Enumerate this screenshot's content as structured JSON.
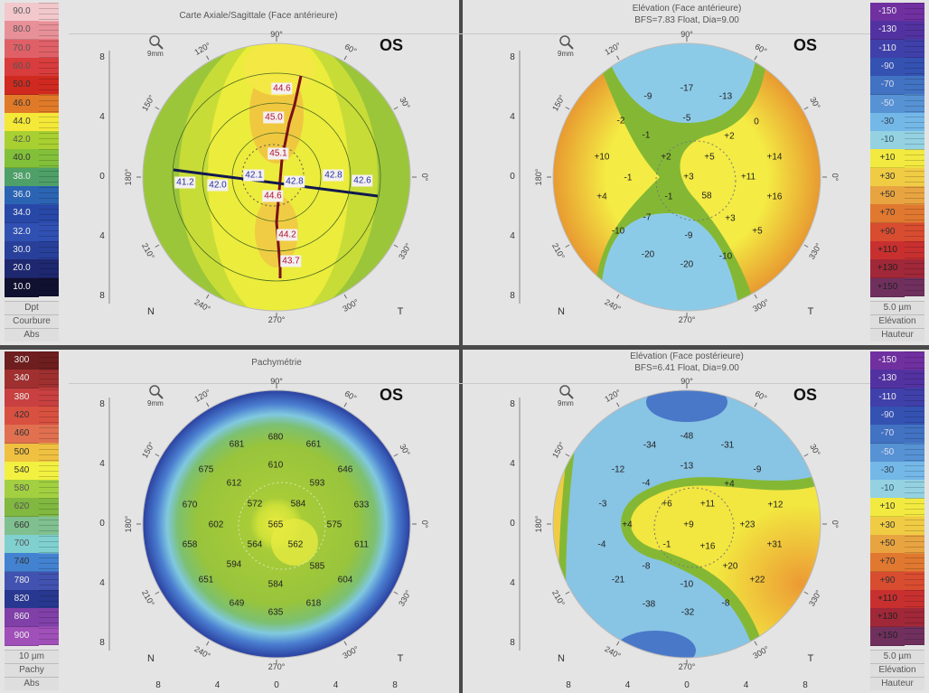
{
  "panels": [
    {
      "id": "axial",
      "title": "Carte Axiale/Sagittale (Face antérieure)",
      "subtitle": "",
      "eye": "OS",
      "zoom_label": "9mm",
      "nasal": "N",
      "temporal": "T",
      "y_axis": [
        "8",
        "4",
        "0",
        "4",
        "8"
      ],
      "x_axis": [],
      "angles": [
        "90°",
        "120°",
        "150°",
        "180°",
        "210°",
        "240°",
        "270°",
        "300°",
        "330°",
        "0°",
        "30°",
        "60°"
      ],
      "scale": {
        "values": [
          "90.0",
          "80.0",
          "70.0",
          "60.0",
          "50.0",
          "46.0",
          "44.0",
          "42.0",
          "40.0",
          "38.0",
          "36.0",
          "34.0",
          "32.0",
          "30.0",
          "20.0",
          "10.0"
        ],
        "colors": [
          "#f2c8cc",
          "#e89098",
          "#e06068",
          "#d83c3c",
          "#d02a20",
          "#e07a28",
          "#f4e838",
          "#a8d030",
          "#82c03a",
          "#4ea068",
          "#2c64b4",
          "#2848a8",
          "#3050b2",
          "#28409a",
          "#1e2870",
          "#101030"
        ],
        "text_colors": [
          "#555",
          "#555",
          "#555",
          "#555",
          "#333",
          "#333",
          "#333",
          "#555",
          "#333",
          "#eee",
          "#eee",
          "#eee",
          "#eee",
          "#eee",
          "#eee",
          "#fff"
        ],
        "footer": [
          "Dpt",
          "Courbure",
          "Abs"
        ]
      },
      "values": [
        {
          "v": "44.6",
          "kind": "steep"
        },
        {
          "v": "45.0",
          "kind": "steep"
        },
        {
          "v": "45.1",
          "kind": "steep"
        },
        {
          "v": "44.6",
          "kind": "steep"
        },
        {
          "v": "44.2",
          "kind": "steep"
        },
        {
          "v": "43.7",
          "kind": "steep"
        },
        {
          "v": "41.2",
          "kind": "flat"
        },
        {
          "v": "42.0",
          "kind": "flat"
        },
        {
          "v": "42.1",
          "kind": "flat"
        },
        {
          "v": "42.8",
          "kind": "flat"
        },
        {
          "v": "42.8",
          "kind": "flat"
        },
        {
          "v": "42.6",
          "kind": "flat"
        }
      ]
    },
    {
      "id": "elev-ant",
      "title": "Elévation (Face antérieure)",
      "subtitle": "BFS=7.83 Float, Dia=9.00",
      "eye": "OS",
      "zoom_label": "9mm",
      "nasal": "N",
      "temporal": "T",
      "y_axis": [
        "8",
        "4",
        "0",
        "4",
        "8"
      ],
      "x_axis": [],
      "angles": [
        "90°",
        "120°",
        "150°",
        "180°",
        "210°",
        "240°",
        "270°",
        "300°",
        "330°",
        "0°",
        "30°",
        "60°"
      ],
      "scale": {
        "values": [
          "-150",
          "-130",
          "-110",
          "-90",
          "-70",
          "-50",
          "-30",
          "-10",
          "+10",
          "+30",
          "+50",
          "+70",
          "+90",
          "+110",
          "+130",
          "+150"
        ],
        "colors": [
          "#7030a0",
          "#5232a0",
          "#4040aa",
          "#3452b2",
          "#4272c2",
          "#5692d4",
          "#74b8e8",
          "#94d2e2",
          "#f2ea40",
          "#f0cc44",
          "#e8a440",
          "#e07830",
          "#d84c30",
          "#c83030",
          "#a02838",
          "#70305e"
        ],
        "text_colors": [
          "#eee",
          "#eee",
          "#eee",
          "#dde",
          "#dde",
          "#dde",
          "#345",
          "#356",
          "#333",
          "#333",
          "#333",
          "#333",
          "#333",
          "#222",
          "#222",
          "#222"
        ],
        "footer": [
          "5.0 µm",
          "Elévation",
          "Hauteur"
        ]
      },
      "values": [
        "-9",
        "-17",
        "-13",
        "-5",
        "0",
        "-2",
        "-1",
        "+2",
        "+10",
        "+2",
        "+5",
        "+14",
        "+3",
        "+11",
        "-1",
        "+4",
        "-1",
        "58",
        "+16",
        "-7",
        "+3",
        "-10",
        "-9",
        "+5",
        "-20",
        "-20",
        "-10"
      ]
    },
    {
      "id": "pachy",
      "title": "Pachymétrie",
      "subtitle": "",
      "eye": "OS",
      "zoom_label": "9mm",
      "nasal": "N",
      "temporal": "T",
      "y_axis": [
        "8",
        "4",
        "0",
        "4",
        "8"
      ],
      "x_axis": [
        "8",
        "4",
        "0",
        "4",
        "8"
      ],
      "angles": [
        "90°",
        "120°",
        "150°",
        "180°",
        "210°",
        "240°",
        "270°",
        "300°",
        "330°",
        "0°",
        "30°",
        "60°"
      ],
      "scale": {
        "values": [
          "300",
          "340",
          "380",
          "420",
          "460",
          "500",
          "540",
          "580",
          "620",
          "660",
          "700",
          "740",
          "780",
          "820",
          "860",
          "900"
        ],
        "colors": [
          "#6e1e1e",
          "#a03030",
          "#c84040",
          "#d85040",
          "#e07050",
          "#f0c040",
          "#f2f040",
          "#a2d040",
          "#80b840",
          "#80c090",
          "#80d0d0",
          "#4282d0",
          "#4252b0",
          "#283890",
          "#8040a8",
          "#a050b8"
        ],
        "text_colors": [
          "#eee",
          "#eee",
          "#eee",
          "#333",
          "#333",
          "#333",
          "#333",
          "#555",
          "#555",
          "#333",
          "#555",
          "#333",
          "#eee",
          "#eee",
          "#eee",
          "#eee"
        ],
        "footer": [
          "10 µm",
          "Pachy",
          "Abs"
        ]
      },
      "values": [
        "681",
        "680",
        "661",
        "675",
        "610",
        "646",
        "612",
        "593",
        "670",
        "572",
        "584",
        "633",
        "602",
        "565",
        "575",
        "658",
        "564",
        "562",
        "611",
        "594",
        "585",
        "651",
        "584",
        "604",
        "649",
        "618",
        "635"
      ]
    },
    {
      "id": "elev-post",
      "title": "Elévation (Face postérieure)",
      "subtitle": "BFS=6.41 Float, Dia=9.00",
      "eye": "OS",
      "zoom_label": "9mm",
      "nasal": "N",
      "temporal": "T",
      "y_axis": [
        "8",
        "4",
        "0",
        "4",
        "8"
      ],
      "x_axis": [
        "8",
        "4",
        "0",
        "4",
        "8"
      ],
      "angles": [
        "90°",
        "120°",
        "150°",
        "180°",
        "210°",
        "240°",
        "270°",
        "300°",
        "330°",
        "0°",
        "30°",
        "60°"
      ],
      "scale": {
        "values": [
          "-150",
          "-130",
          "-110",
          "-90",
          "-70",
          "-50",
          "-30",
          "-10",
          "+10",
          "+30",
          "+50",
          "+70",
          "+90",
          "+110",
          "+130",
          "+150"
        ],
        "colors": [
          "#7030a0",
          "#5232a0",
          "#4040aa",
          "#3452b2",
          "#4272c2",
          "#5692d4",
          "#74b8e8",
          "#94d2e2",
          "#f2ea40",
          "#f0cc44",
          "#e8a440",
          "#e07830",
          "#d84c30",
          "#c83030",
          "#a02838",
          "#70305e"
        ],
        "text_colors": [
          "#eee",
          "#eee",
          "#eee",
          "#dde",
          "#dde",
          "#dde",
          "#345",
          "#356",
          "#333",
          "#333",
          "#333",
          "#333",
          "#333",
          "#222",
          "#222",
          "#222"
        ],
        "footer": [
          "5.0 µm",
          "Elévation",
          "Hauteur"
        ]
      },
      "values": [
        "-48",
        "-34",
        "-31",
        "-12",
        "-13",
        "-9",
        "-4",
        "+4",
        "-3",
        "+6",
        "+11",
        "+12",
        "+4",
        "+9",
        "+23",
        "-4",
        "-1",
        "+16",
        "+31",
        "-8",
        "+20",
        "-21",
        "-10",
        "+22",
        "-38",
        "-32",
        "-8"
      ]
    }
  ]
}
